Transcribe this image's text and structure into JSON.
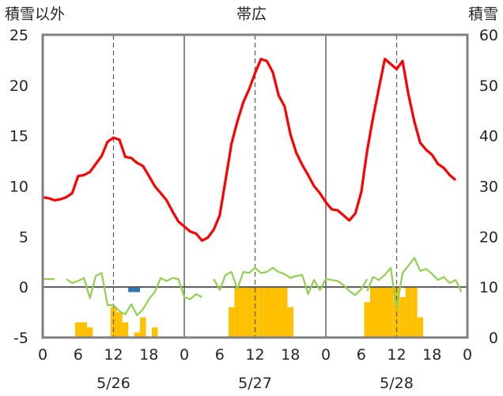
{
  "chart_data": {
    "type": "bar+line",
    "title": "帯広",
    "left_axis_label": "積雪以外",
    "right_axis_label": "積雪",
    "left_ylim": [
      -5,
      25
    ],
    "left_ticks": [
      -5,
      0,
      5,
      10,
      15,
      20,
      25
    ],
    "right_ylim": [
      0,
      60
    ],
    "right_ticks": [
      0,
      10,
      20,
      30,
      40,
      50,
      60
    ],
    "x_range_hours": [
      0,
      72
    ],
    "x_tick_labels": [
      "0",
      "6",
      "12",
      "18",
      "0",
      "6",
      "12",
      "18",
      "0",
      "6",
      "12",
      "18",
      "0"
    ],
    "date_labels": [
      "5/26",
      "5/27",
      "5/28"
    ],
    "colors": {
      "temperature": "#ff0000",
      "snow_depth_bar": "#ffc000",
      "negative_bar": "#2e75b6",
      "green_line": "#92d050",
      "frame": "#808080",
      "zero_line": "#595959"
    },
    "series": [
      {
        "role": "temperature line",
        "axis": "left",
        "points": [
          [
            0,
            8.9
          ],
          [
            1,
            8.8
          ],
          [
            2,
            8.6
          ],
          [
            3,
            8.7
          ],
          [
            4,
            8.9
          ],
          [
            5,
            9.3
          ],
          [
            6,
            11.0
          ],
          [
            7,
            11.1
          ],
          [
            8,
            11.4
          ],
          [
            9,
            12.2
          ],
          [
            10,
            13.0
          ],
          [
            11,
            14.4
          ],
          [
            12,
            14.8
          ],
          [
            12.5,
            14.7
          ],
          [
            13,
            14.6
          ],
          [
            14,
            12.9
          ],
          [
            15,
            12.8
          ],
          [
            16,
            12.3
          ],
          [
            17,
            12.0
          ],
          [
            18,
            11.0
          ],
          [
            19,
            10.0
          ],
          [
            20,
            9.3
          ],
          [
            21,
            8.6
          ],
          [
            22,
            7.5
          ],
          [
            23,
            6.5
          ],
          [
            24,
            6.0
          ],
          [
            25,
            5.5
          ],
          [
            26,
            5.3
          ],
          [
            27,
            4.6
          ],
          [
            28,
            4.9
          ],
          [
            29,
            5.7
          ],
          [
            30,
            7.1
          ],
          [
            31,
            10.6
          ],
          [
            32,
            14.2
          ],
          [
            33,
            16.4
          ],
          [
            34,
            18.3
          ],
          [
            35,
            19.6
          ],
          [
            36,
            21.2
          ],
          [
            37,
            22.6
          ],
          [
            38,
            22.4
          ],
          [
            39,
            21.3
          ],
          [
            40,
            19.0
          ],
          [
            41,
            17.9
          ],
          [
            42,
            15.1
          ],
          [
            43,
            13.3
          ],
          [
            44,
            12.1
          ],
          [
            45,
            11.1
          ],
          [
            46,
            10.0
          ],
          [
            47,
            9.3
          ],
          [
            48,
            8.4
          ],
          [
            49,
            7.7
          ],
          [
            50,
            7.6
          ],
          [
            51,
            7.1
          ],
          [
            52,
            6.6
          ],
          [
            53,
            7.3
          ],
          [
            54,
            9.4
          ],
          [
            55,
            13.5
          ],
          [
            56,
            16.8
          ],
          [
            57,
            19.7
          ],
          [
            58,
            22.6
          ],
          [
            59,
            22.1
          ],
          [
            60,
            21.6
          ],
          [
            61,
            22.4
          ],
          [
            62,
            19.1
          ],
          [
            63,
            16.4
          ],
          [
            64,
            14.3
          ],
          [
            65,
            13.6
          ],
          [
            66,
            13.1
          ],
          [
            67,
            12.2
          ],
          [
            68,
            11.8
          ],
          [
            69,
            11.1
          ],
          [
            70,
            10.6
          ]
        ]
      },
      {
        "role": "green line",
        "axis": "left",
        "segments": [
          [
            [
              0,
              0.8
            ],
            [
              1,
              0.8
            ],
            [
              2,
              0.8
            ]
          ],
          [
            [
              4,
              0.8
            ],
            [
              5,
              0.4
            ],
            [
              6,
              0.6
            ],
            [
              7,
              0.9
            ],
            [
              8,
              -1.1
            ],
            [
              9,
              1.1
            ],
            [
              10,
              1.4
            ],
            [
              11,
              -1.8
            ],
            [
              12,
              -1.8
            ],
            [
              13,
              -2.4
            ],
            [
              14,
              -2.7
            ],
            [
              15,
              -1.7
            ],
            [
              16,
              -2.8
            ],
            [
              17,
              -2.2
            ],
            [
              18,
              -1.2
            ],
            [
              19,
              -0.5
            ],
            [
              20,
              0.9
            ],
            [
              21,
              0.6
            ],
            [
              22,
              0.9
            ],
            [
              23,
              0.8
            ],
            [
              24,
              -1.0
            ],
            [
              25,
              -1.2
            ],
            [
              26,
              -0.7
            ],
            [
              27,
              -1.0
            ]
          ],
          [
            [
              29,
              0.8
            ],
            [
              30,
              -0.3
            ],
            [
              31,
              1.2
            ],
            [
              32,
              1.5
            ],
            [
              33,
              -0.2
            ],
            [
              34,
              1.5
            ],
            [
              35,
              1.4
            ],
            [
              36,
              1.9
            ],
            [
              37,
              1.4
            ],
            [
              38,
              1.5
            ],
            [
              39,
              1.9
            ],
            [
              40,
              1.5
            ],
            [
              41,
              1.3
            ],
            [
              42,
              0.9
            ],
            [
              43,
              1.1
            ],
            [
              44,
              1.2
            ],
            [
              45,
              -0.7
            ],
            [
              46,
              0.7
            ],
            [
              47,
              -0.3
            ],
            [
              48,
              0.8
            ],
            [
              49,
              0.7
            ],
            [
              50,
              0.6
            ],
            [
              51,
              0.2
            ],
            [
              52,
              -0.4
            ],
            [
              53,
              -0.8
            ],
            [
              54,
              -0.2
            ],
            [
              55,
              0.8
            ]
          ],
          [
            [
              55,
              -0.4
            ],
            [
              56,
              1.0
            ],
            [
              57,
              0.7
            ],
            [
              58,
              1.2
            ],
            [
              59,
              1.9
            ],
            [
              60,
              -2.1
            ],
            [
              61,
              1.4
            ],
            [
              62,
              2.1
            ],
            [
              63,
              2.9
            ],
            [
              64,
              1.6
            ],
            [
              65,
              1.8
            ],
            [
              66,
              1.3
            ],
            [
              67,
              0.7
            ],
            [
              68,
              1.0
            ],
            [
              69,
              0.4
            ],
            [
              70,
              0.7
            ],
            [
              71,
              -0.5
            ]
          ]
        ]
      },
      {
        "role": "snow depth bars (hourly)",
        "axis": "right",
        "bars": [
          [
            6,
            3
          ],
          [
            7,
            3
          ],
          [
            8,
            2
          ],
          [
            12,
            6
          ],
          [
            13,
            5
          ],
          [
            14,
            3
          ],
          [
            16,
            1
          ],
          [
            17,
            4
          ],
          [
            19,
            2
          ],
          [
            32,
            6
          ],
          [
            33,
            10
          ],
          [
            34,
            10
          ],
          [
            35,
            10
          ],
          [
            36,
            10
          ],
          [
            37,
            10
          ],
          [
            38,
            10
          ],
          [
            39,
            10
          ],
          [
            40,
            10
          ],
          [
            41,
            10
          ],
          [
            42,
            6
          ],
          [
            55,
            7
          ],
          [
            56,
            10
          ],
          [
            57,
            10
          ],
          [
            58,
            10
          ],
          [
            59,
            10
          ],
          [
            60,
            10
          ],
          [
            61,
            8
          ],
          [
            62,
            10
          ],
          [
            63,
            10
          ],
          [
            64,
            4
          ]
        ]
      },
      {
        "role": "negative bars",
        "axis": "left",
        "bars": [
          [
            15,
            -0.5
          ],
          [
            16,
            -0.5
          ]
        ]
      }
    ]
  }
}
